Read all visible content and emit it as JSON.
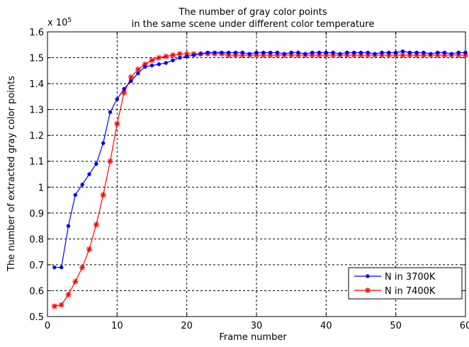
{
  "chart_data": {
    "type": "line",
    "title": [
      "The number of gray color points",
      "in the same scene under different color temperature"
    ],
    "xlabel": "Frame number",
    "ylabel": "The number of extracted gray color points",
    "y_multiplier": "x 10",
    "y_multiplier_exp": "5",
    "xlim": [
      0,
      60
    ],
    "ylim": [
      0.5,
      1.6
    ],
    "x_ticks": [
      0,
      10,
      20,
      30,
      40,
      50,
      60
    ],
    "x_tick_labels": [
      "0",
      "10",
      "20",
      "30",
      "40",
      "50",
      "60"
    ],
    "y_ticks": [
      0.5,
      0.6,
      0.7,
      0.8,
      0.9,
      1.0,
      1.1,
      1.2,
      1.3,
      1.4,
      1.5,
      1.6
    ],
    "y_tick_labels": [
      "0.5",
      "0.6",
      "0.7",
      "0.8",
      "0.9",
      "1",
      "1.1",
      "1.2",
      "1.3",
      "1.4",
      "1.5",
      "1.6"
    ],
    "grid": true,
    "legend_position": "bottom-right",
    "series": [
      {
        "name": "N in 3700K",
        "color": "#0000ff",
        "marker": "dot",
        "x": [
          1,
          2,
          3,
          4,
          5,
          6,
          7,
          8,
          9,
          10,
          11,
          12,
          13,
          14,
          15,
          16,
          17,
          18,
          19,
          20,
          21,
          22,
          23,
          24,
          25,
          26,
          27,
          28,
          29,
          30,
          31,
          32,
          33,
          34,
          35,
          36,
          37,
          38,
          39,
          40,
          41,
          42,
          43,
          44,
          45,
          46,
          47,
          48,
          49,
          50,
          51,
          52,
          53,
          54,
          55,
          56,
          57,
          58,
          59,
          60
        ],
        "y": [
          0.69,
          0.69,
          0.85,
          0.97,
          1.01,
          1.05,
          1.09,
          1.17,
          1.29,
          1.34,
          1.38,
          1.41,
          1.44,
          1.465,
          1.47,
          1.475,
          1.48,
          1.49,
          1.5,
          1.505,
          1.51,
          1.515,
          1.52,
          1.52,
          1.52,
          1.52,
          1.52,
          1.52,
          1.515,
          1.52,
          1.52,
          1.52,
          1.52,
          1.515,
          1.52,
          1.52,
          1.515,
          1.52,
          1.52,
          1.52,
          1.52,
          1.515,
          1.52,
          1.52,
          1.52,
          1.52,
          1.515,
          1.52,
          1.52,
          1.52,
          1.525,
          1.52,
          1.52,
          1.52,
          1.515,
          1.52,
          1.52,
          1.515,
          1.52,
          1.52
        ]
      },
      {
        "name": "N in 7400K",
        "color": "#ff0000",
        "marker": "star",
        "x": [
          1,
          2,
          3,
          4,
          5,
          6,
          7,
          8,
          9,
          10,
          11,
          12,
          13,
          14,
          15,
          16,
          17,
          18,
          19,
          20,
          21,
          22,
          23,
          24,
          25,
          26,
          27,
          28,
          29,
          30,
          31,
          32,
          33,
          34,
          35,
          36,
          37,
          38,
          39,
          40,
          41,
          42,
          43,
          44,
          45,
          46,
          47,
          48,
          49,
          50,
          51,
          52,
          53,
          54,
          55,
          56,
          57,
          58,
          59,
          60
        ],
        "y": [
          0.54,
          0.545,
          0.585,
          0.635,
          0.69,
          0.76,
          0.855,
          0.97,
          1.1,
          1.245,
          1.365,
          1.425,
          1.455,
          1.475,
          1.49,
          1.5,
          1.505,
          1.51,
          1.515,
          1.515,
          1.515,
          1.515,
          1.515,
          1.515,
          1.515,
          1.51,
          1.51,
          1.51,
          1.51,
          1.51,
          1.51,
          1.51,
          1.51,
          1.51,
          1.51,
          1.51,
          1.51,
          1.51,
          1.51,
          1.51,
          1.51,
          1.51,
          1.51,
          1.51,
          1.51,
          1.51,
          1.51,
          1.51,
          1.51,
          1.51,
          1.51,
          1.51,
          1.51,
          1.51,
          1.51,
          1.51,
          1.51,
          1.51,
          1.51,
          1.51
        ]
      }
    ]
  }
}
